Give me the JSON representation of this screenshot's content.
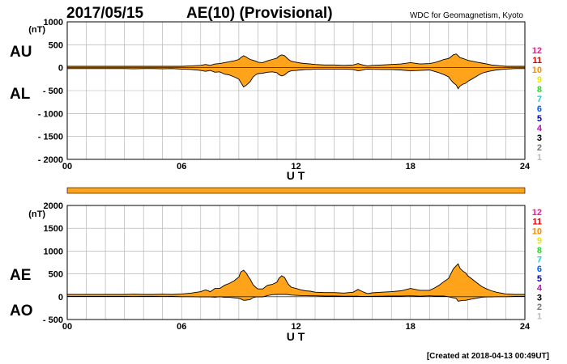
{
  "header": {
    "date": "2017/05/15",
    "title": "AE(10) (Provisional)",
    "source": "WDC for Geomagnetism, Kyoto"
  },
  "footer": {
    "created": "[Created at 2018-04-13 00:49UT]"
  },
  "legend_stations": [
    "12",
    "11",
    "10",
    "9",
    "8",
    "7",
    "6",
    "5",
    "4",
    "3",
    "2",
    "1"
  ],
  "colors": {
    "fill": "#ffa31a",
    "grid": "#aaaaaa",
    "stations": [
      "#ff1493",
      "#dd0000",
      "#ff8c00",
      "#e8e800",
      "#22dd22",
      "#00d8d8",
      "#0060ff",
      "#0000bb",
      "#cc00cc",
      "#000000",
      "#777777",
      "#bbbbbb"
    ]
  },
  "chart_data": [
    {
      "type": "area",
      "name": "AU/AL",
      "ylabel_upper": "AU",
      "ylabel_lower": "AL",
      "unit": "(nT)",
      "xlabel": "U T",
      "xlim": [
        0,
        24
      ],
      "ylim": [
        -2000,
        1000
      ],
      "yticks": [
        1000,
        500,
        0,
        -500,
        -1000,
        -1500,
        -2000
      ],
      "ytick_labels": [
        "1000",
        "500",
        "0",
        "- 500",
        "- 1000",
        "- 1500",
        "- 2000"
      ],
      "xtick_labels": [
        {
          "v": 0,
          "t": "00"
        },
        {
          "v": 6,
          "t": "06"
        },
        {
          "v": 12,
          "t": "12"
        },
        {
          "v": 18,
          "t": "18"
        },
        {
          "v": 24,
          "t": "24"
        }
      ],
      "x": [
        0,
        0.5,
        1,
        1.5,
        2,
        2.5,
        3,
        3.5,
        4,
        4.5,
        5,
        5.5,
        6,
        6.5,
        7,
        7.25,
        7.5,
        7.75,
        8,
        8.25,
        8.5,
        8.75,
        9,
        9.1,
        9.25,
        9.4,
        9.5,
        9.6,
        9.75,
        9.9,
        10,
        10.25,
        10.5,
        10.75,
        11,
        11.1,
        11.25,
        11.4,
        11.5,
        11.6,
        11.75,
        12,
        12.25,
        12.5,
        12.75,
        13,
        13.5,
        14,
        14.5,
        15,
        15.25,
        15.4,
        15.5,
        15.6,
        15.75,
        16,
        16.5,
        17,
        17.5,
        18,
        18.5,
        19,
        19.25,
        19.5,
        19.75,
        20,
        20.1,
        20.25,
        20.4,
        20.5,
        20.6,
        20.75,
        20.9,
        21,
        21.25,
        21.5,
        21.75,
        22,
        22.25,
        22.5,
        22.75,
        23,
        23.5,
        24
      ],
      "series": [
        {
          "name": "AU",
          "values": [
            30,
            30,
            30,
            30,
            30,
            30,
            30,
            30,
            30,
            30,
            30,
            30,
            30,
            40,
            50,
            70,
            50,
            80,
            90,
            110,
            130,
            150,
            180,
            220,
            260,
            230,
            200,
            180,
            160,
            140,
            120,
            110,
            150,
            180,
            210,
            250,
            280,
            260,
            220,
            180,
            140,
            120,
            100,
            90,
            80,
            70,
            60,
            60,
            50,
            60,
            90,
            70,
            60,
            50,
            40,
            50,
            60,
            70,
            80,
            110,
            80,
            90,
            110,
            140,
            180,
            200,
            230,
            280,
            300,
            260,
            220,
            200,
            180,
            160,
            140,
            120,
            100,
            80,
            60,
            50,
            40,
            30,
            30,
            30
          ]
        },
        {
          "name": "AL",
          "values": [
            -20,
            -20,
            -20,
            -20,
            -20,
            -20,
            -20,
            -25,
            -20,
            -20,
            -25,
            -20,
            -30,
            -40,
            -60,
            -80,
            -60,
            -100,
            -90,
            -140,
            -160,
            -200,
            -250,
            -320,
            -420,
            -380,
            -340,
            -300,
            -200,
            -150,
            -130,
            -120,
            -100,
            -90,
            -110,
            -150,
            -180,
            -160,
            -120,
            -90,
            -70,
            -60,
            -50,
            -40,
            -40,
            -30,
            -30,
            -30,
            -30,
            -40,
            -70,
            -60,
            -50,
            -40,
            -30,
            -35,
            -40,
            -40,
            -50,
            -70,
            -60,
            -50,
            -80,
            -110,
            -150,
            -200,
            -260,
            -330,
            -380,
            -460,
            -400,
            -360,
            -340,
            -300,
            -240,
            -180,
            -120,
            -90,
            -70,
            -50,
            -40,
            -30,
            -20,
            -20
          ]
        }
      ]
    },
    {
      "type": "area",
      "name": "AE/AO",
      "ylabel_upper": "AE",
      "ylabel_lower": "AO",
      "unit": "(nT)",
      "xlabel": "U T",
      "xlim": [
        0,
        24
      ],
      "ylim": [
        -500,
        2000
      ],
      "yticks": [
        2000,
        1500,
        1000,
        500,
        0,
        -500
      ],
      "ytick_labels": [
        "2000",
        "1500",
        "1000",
        "500",
        "0",
        "- 500"
      ],
      "xtick_labels": [
        {
          "v": 0,
          "t": "00"
        },
        {
          "v": 6,
          "t": "06"
        },
        {
          "v": 12,
          "t": "12"
        },
        {
          "v": 18,
          "t": "18"
        },
        {
          "v": 24,
          "t": "24"
        }
      ],
      "x": [
        0,
        0.5,
        1,
        1.5,
        2,
        2.5,
        3,
        3.5,
        4,
        4.5,
        5,
        5.5,
        6,
        6.5,
        7,
        7.25,
        7.5,
        7.75,
        8,
        8.25,
        8.5,
        8.75,
        9,
        9.1,
        9.25,
        9.4,
        9.5,
        9.6,
        9.75,
        9.9,
        10,
        10.25,
        10.5,
        10.75,
        11,
        11.1,
        11.25,
        11.4,
        11.5,
        11.6,
        11.75,
        12,
        12.25,
        12.5,
        12.75,
        13,
        13.5,
        14,
        14.5,
        15,
        15.25,
        15.4,
        15.5,
        15.6,
        15.75,
        16,
        16.5,
        17,
        17.5,
        18,
        18.5,
        19,
        19.25,
        19.5,
        19.75,
        20,
        20.1,
        20.25,
        20.4,
        20.5,
        20.6,
        20.75,
        20.9,
        21,
        21.25,
        21.5,
        21.75,
        22,
        22.25,
        22.5,
        22.75,
        23,
        23.5,
        24
      ],
      "series": [
        {
          "name": "AE",
          "values": [
            50,
            50,
            50,
            50,
            50,
            50,
            50,
            55,
            50,
            50,
            55,
            50,
            60,
            80,
            110,
            150,
            110,
            180,
            180,
            250,
            290,
            350,
            430,
            540,
            580,
            510,
            440,
            380,
            260,
            200,
            170,
            170,
            250,
            270,
            320,
            400,
            460,
            420,
            340,
            270,
            210,
            180,
            150,
            130,
            120,
            100,
            90,
            90,
            80,
            100,
            160,
            130,
            110,
            90,
            70,
            85,
            100,
            110,
            130,
            180,
            140,
            140,
            190,
            250,
            330,
            400,
            490,
            610,
            680,
            720,
            620,
            560,
            520,
            460,
            380,
            300,
            220,
            170,
            130,
            100,
            80,
            60,
            50,
            50
          ]
        },
        {
          "name": "AO",
          "values": [
            5,
            5,
            5,
            5,
            5,
            5,
            5,
            3,
            5,
            5,
            3,
            5,
            0,
            0,
            -5,
            -5,
            -5,
            -10,
            0,
            -15,
            -15,
            -25,
            -35,
            -50,
            -80,
            -75,
            -70,
            -60,
            -20,
            -5,
            -5,
            -5,
            25,
            45,
            50,
            50,
            50,
            50,
            50,
            45,
            35,
            30,
            25,
            25,
            20,
            20,
            15,
            15,
            10,
            10,
            10,
            5,
            5,
            5,
            5,
            8,
            10,
            15,
            15,
            20,
            10,
            20,
            15,
            15,
            15,
            0,
            -15,
            -25,
            -40,
            -100,
            -90,
            -80,
            -80,
            -70,
            -50,
            -30,
            -10,
            -5,
            -5,
            0,
            0,
            0,
            5,
            5
          ]
        }
      ]
    }
  ]
}
